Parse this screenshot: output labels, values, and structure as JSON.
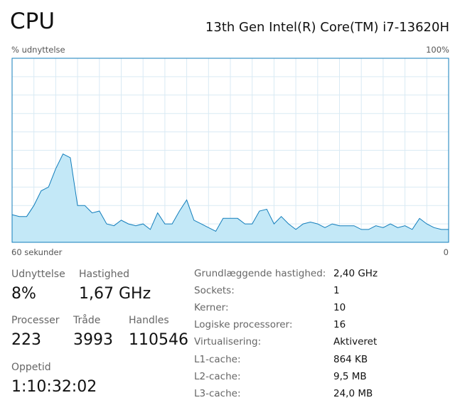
{
  "header": {
    "title": "CPU",
    "model": "13th Gen Intel(R) Core(TM) i7-13620H"
  },
  "chart_data": {
    "type": "area",
    "y_axis_label": "% udnyttelse",
    "y_max_label": "100%",
    "x_left_label": "60 sekunder",
    "x_right_label": "0",
    "ylim": [
      0,
      100
    ],
    "grid_rows": 10,
    "grid_columns": 20,
    "color": "#117dbb",
    "fill": "#c3e8f7",
    "grid_color": "#d9eaf4",
    "values": [
      15,
      14,
      14,
      20,
      28,
      30,
      40,
      48,
      46,
      20,
      20,
      16,
      17,
      10,
      9,
      12,
      10,
      9,
      10,
      7,
      16,
      10,
      10,
      17,
      23,
      12,
      10,
      8,
      6,
      13,
      13,
      13,
      10,
      10,
      17,
      18,
      10,
      14,
      10,
      7,
      10,
      11,
      10,
      8,
      10,
      9,
      9,
      9,
      7,
      7,
      9,
      8,
      10,
      8,
      9,
      7,
      13,
      10,
      8,
      7,
      7
    ]
  },
  "stats": [
    {
      "label": "Udnyttelse",
      "value": "8%"
    },
    {
      "label": "Hastighed",
      "value": "1,67 GHz"
    },
    {
      "label": "Processer",
      "value": "223"
    },
    {
      "label": "Tråde",
      "value": "3993"
    },
    {
      "label": "Handles",
      "value": "110546"
    },
    {
      "label": "Oppetid",
      "value": "1:10:32:02"
    }
  ],
  "details": [
    [
      "Grundlæggende hastighed:",
      "2,40 GHz"
    ],
    [
      "Sockets:",
      "1"
    ],
    [
      "Kerner:",
      "10"
    ],
    [
      "Logiske processorer:",
      "16"
    ],
    [
      "Virtualisering:",
      "Aktiveret"
    ],
    [
      "L1-cache:",
      "864 KB"
    ],
    [
      "L2-cache:",
      "9,5 MB"
    ],
    [
      "L3-cache:",
      "24,0 MB"
    ]
  ]
}
